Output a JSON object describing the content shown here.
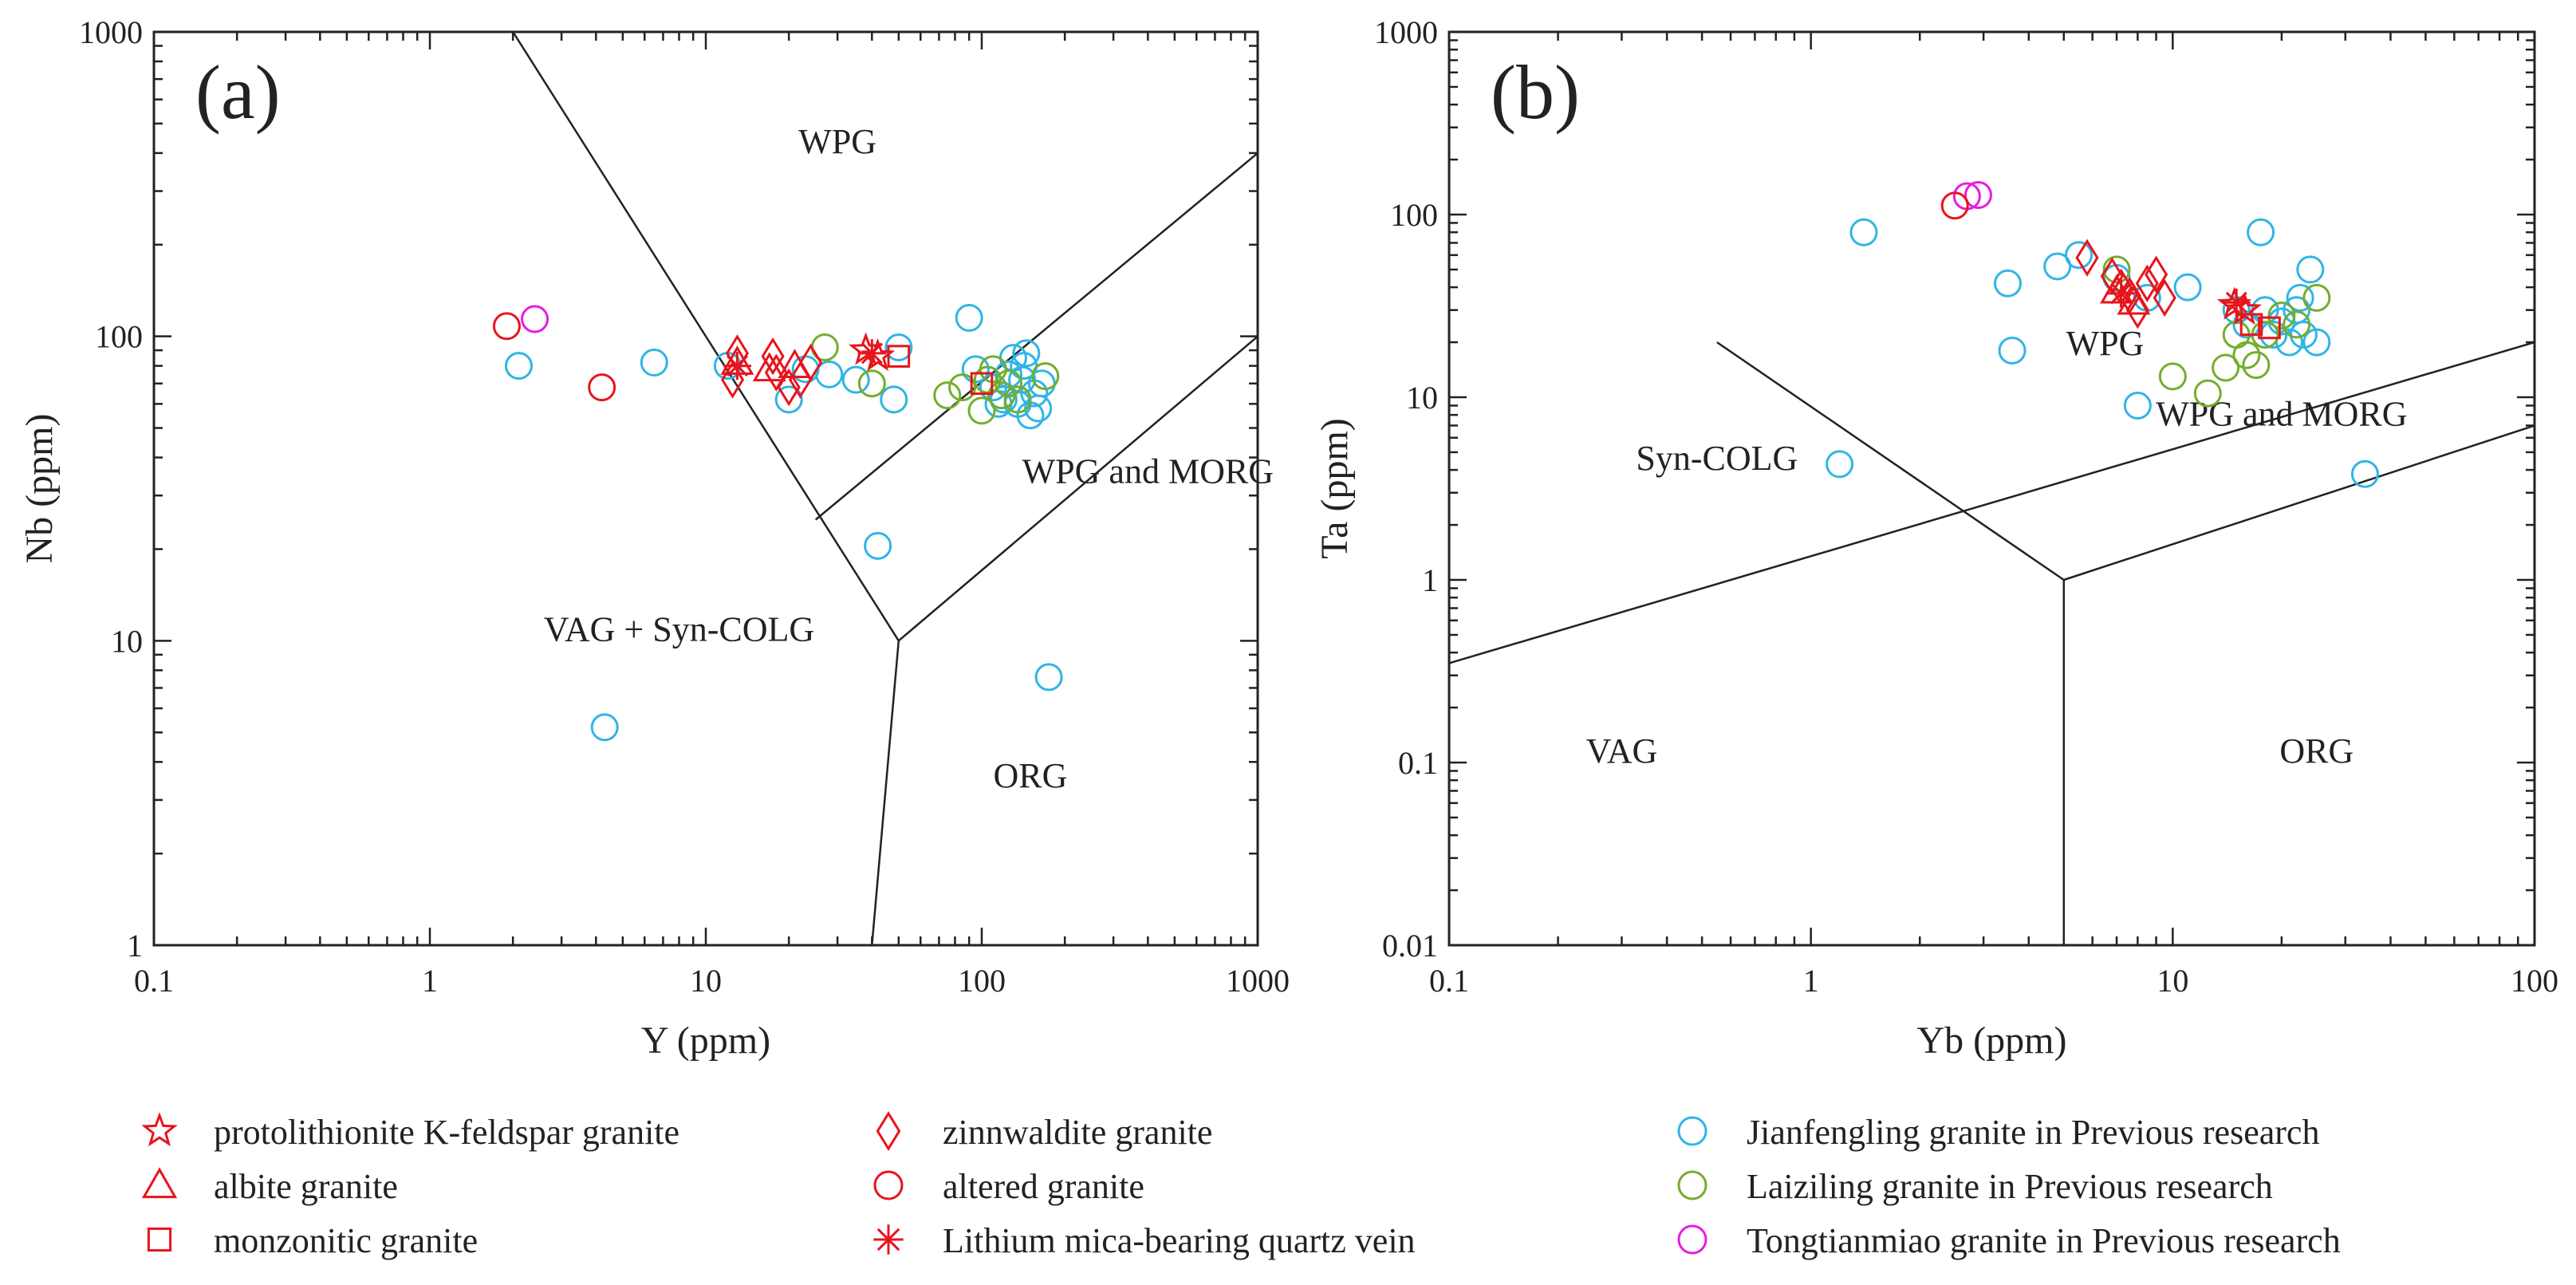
{
  "chart_data": [
    {
      "type": "scatter",
      "panel_label": "(a)",
      "xlabel": "Y (ppm)",
      "ylabel": "Nb (ppm)",
      "xscale": "log",
      "yscale": "log",
      "xlim": [
        0.1,
        1000
      ],
      "ylim": [
        1,
        1000
      ],
      "xticks": [
        0.1,
        1,
        10,
        100,
        1000
      ],
      "xtick_labels": [
        "0.1",
        "1",
        "10",
        "100",
        "1000"
      ],
      "yticks": [
        1,
        10,
        100,
        1000
      ],
      "ytick_labels": [
        "1",
        "10",
        "100",
        "1000"
      ],
      "fields": [
        {
          "label": "WPG",
          "x": 30,
          "y": 400
        },
        {
          "label": "WPG and MORG",
          "x": 400,
          "y": 33
        },
        {
          "label": "VAG + Syn-COLG",
          "x": 8,
          "y": 10
        },
        {
          "label": "ORG",
          "x": 150,
          "y": 3.3
        }
      ],
      "boundaries": [
        {
          "points": [
            [
              2,
              1000
            ],
            [
              50,
              10
            ]
          ]
        },
        {
          "points": [
            [
              50,
              10
            ],
            [
              40,
              1
            ]
          ]
        },
        {
          "points": [
            [
              25,
              25
            ],
            [
              1000,
              400
            ]
          ]
        },
        {
          "points": [
            [
              50,
              10
            ],
            [
              1000,
              100
            ]
          ]
        }
      ],
      "series": [
        {
          "name": "Jianfengling granite in Previous research",
          "points": [
            [
              2.1,
              80
            ],
            [
              6.5,
              82
            ],
            [
              4.3,
              5.2
            ],
            [
              12,
              80
            ],
            [
              20,
              62
            ],
            [
              23,
              78
            ],
            [
              28,
              75
            ],
            [
              35,
              72
            ],
            [
              42,
              20.5
            ],
            [
              48,
              62
            ],
            [
              50,
              92
            ],
            [
              90,
              115
            ],
            [
              95,
              78
            ],
            [
              110,
              68
            ],
            [
              120,
              62
            ],
            [
              130,
              85
            ],
            [
              135,
              60
            ],
            [
              140,
              72
            ],
            [
              145,
              88
            ],
            [
              150,
              55
            ],
            [
              155,
              65
            ],
            [
              160,
              58
            ],
            [
              165,
              70
            ],
            [
              175,
              7.6
            ],
            [
              125,
              75
            ],
            [
              115,
              60
            ],
            [
              142,
              80
            ]
          ]
        },
        {
          "name": "Laiziling granite in Previous research",
          "points": [
            [
              27,
              92
            ],
            [
              40,
              70
            ],
            [
              75,
              64
            ],
            [
              85,
              68
            ],
            [
              100,
              57
            ],
            [
              105,
              72
            ],
            [
              110,
              78
            ],
            [
              118,
              64
            ],
            [
              125,
              70
            ],
            [
              135,
              62
            ],
            [
              170,
              74
            ]
          ]
        },
        {
          "name": "Tongtianmiao granite in Previous research",
          "points": [
            [
              2.4,
              114
            ]
          ]
        },
        {
          "name": "altered granite",
          "points": [
            [
              1.9,
              108
            ],
            [
              4.2,
              68
            ]
          ]
        },
        {
          "name": "zinnwaldite granite",
          "points": [
            [
              12.5,
              72
            ],
            [
              13,
              88
            ],
            [
              17.5,
              86
            ],
            [
              18,
              76
            ],
            [
              20,
              68
            ],
            [
              22,
              72
            ],
            [
              24,
              82
            ]
          ]
        },
        {
          "name": "albite granite",
          "points": [
            [
              13,
              82
            ],
            [
              17,
              78
            ],
            [
              21,
              80
            ]
          ]
        },
        {
          "name": "monzonitic granite",
          "points": [
            [
              50,
              86
            ],
            [
              100,
              70
            ]
          ]
        },
        {
          "name": "protolithionite K-feldspar granite",
          "points": [
            [
              38,
              90
            ],
            [
              42,
              86
            ]
          ]
        },
        {
          "name": "Lithium mica-bearing quartz vein",
          "points": [
            [
              13,
              80
            ],
            [
              40,
              88
            ]
          ]
        }
      ]
    },
    {
      "type": "scatter",
      "panel_label": "(b)",
      "xlabel": "Yb (ppm)",
      "ylabel": "Ta (ppm)",
      "xscale": "log",
      "yscale": "log",
      "xlim": [
        0.1,
        100
      ],
      "ylim": [
        0.01,
        1000
      ],
      "xticks": [
        0.1,
        1,
        10,
        100
      ],
      "xtick_labels": [
        "0.1",
        "1",
        "10",
        "100"
      ],
      "yticks": [
        0.01,
        0.1,
        1,
        10,
        100,
        1000
      ],
      "ytick_labels": [
        "0.01",
        "0.1",
        "1",
        "10",
        "100",
        "1000"
      ],
      "fields": [
        {
          "label": "WPG",
          "x": 6.5,
          "y": 17
        },
        {
          "label": "Syn-COLG",
          "x": 0.55,
          "y": 4
        },
        {
          "label": "WPG and MORG",
          "x": 20,
          "y": 7
        },
        {
          "label": "VAG",
          "x": 0.3,
          "y": 0.1
        },
        {
          "label": "ORG",
          "x": 25,
          "y": 0.1
        }
      ],
      "boundaries": [
        {
          "points": [
            [
              0.55,
              20
            ],
            [
              5,
              1
            ]
          ]
        },
        {
          "points": [
            [
              5,
              1
            ],
            [
              5,
              0.01
            ]
          ]
        },
        {
          "points": [
            [
              0.1,
              0.35
            ],
            [
              100,
              20
            ]
          ]
        },
        {
          "points": [
            [
              5,
              1
            ],
            [
              100,
              7
            ]
          ]
        }
      ],
      "series": [
        {
          "name": "Jianfengling granite in Previous research",
          "points": [
            [
              1.2,
              4.3
            ],
            [
              1.4,
              80
            ],
            [
              3.5,
              42
            ],
            [
              3.6,
              18
            ],
            [
              4.8,
              52
            ],
            [
              5.5,
              60
            ],
            [
              7,
              45
            ],
            [
              8,
              9
            ],
            [
              8.5,
              35
            ],
            [
              11,
              40
            ],
            [
              15,
              30
            ],
            [
              16,
              25
            ],
            [
              17.5,
              80
            ],
            [
              18,
              30
            ],
            [
              19,
              22
            ],
            [
              20,
              26
            ],
            [
              21,
              20
            ],
            [
              22,
              30
            ],
            [
              23,
              22
            ],
            [
              24,
              50
            ],
            [
              25,
              20
            ],
            [
              22.5,
              35
            ],
            [
              34,
              3.8
            ]
          ]
        },
        {
          "name": "Laiziling granite in Previous research",
          "points": [
            [
              7,
              50
            ],
            [
              10,
              13
            ],
            [
              12.5,
              10.5
            ],
            [
              14,
              14.5
            ],
            [
              15,
              22
            ],
            [
              16,
              17
            ],
            [
              17,
              15
            ],
            [
              18,
              22
            ],
            [
              20,
              28
            ],
            [
              22,
              25
            ],
            [
              25,
              35
            ]
          ]
        },
        {
          "name": "Tongtianmiao granite in Previous research",
          "points": [
            [
              2.9,
              128
            ],
            [
              2.7,
              126
            ]
          ]
        },
        {
          "name": "altered granite",
          "points": [
            [
              2.5,
              112
            ]
          ]
        },
        {
          "name": "zinnwaldite granite",
          "points": [
            [
              5.8,
              58
            ],
            [
              6.8,
              46
            ],
            [
              7.2,
              40
            ],
            [
              7.6,
              36
            ],
            [
              8,
              30
            ],
            [
              8.5,
              42
            ],
            [
              9,
              47
            ],
            [
              9.5,
              35
            ]
          ]
        },
        {
          "name": "albite granite",
          "points": [
            [
              7,
              38
            ],
            [
              7.8,
              33
            ]
          ]
        },
        {
          "name": "monzonitic granite",
          "points": [
            [
              16.5,
              25
            ],
            [
              18.5,
              24
            ]
          ]
        },
        {
          "name": "protolithionite K-feldspar granite",
          "points": [
            [
              14.8,
              32
            ],
            [
              15.8,
              30
            ]
          ]
        },
        {
          "name": "Lithium mica-bearing quartz vein",
          "points": [
            [
              7.2,
              37
            ],
            [
              15,
              33
            ]
          ]
        }
      ]
    }
  ],
  "legend": [
    {
      "name": "protolithionite K-feldspar granite",
      "marker": "star",
      "color": "#e8141c"
    },
    {
      "name": "albite granite",
      "marker": "triangle",
      "color": "#e8141c"
    },
    {
      "name": "monzonitic granite",
      "marker": "square",
      "color": "#e8141c"
    },
    {
      "name": "zinnwaldite granite",
      "marker": "diamond",
      "color": "#e8141c"
    },
    {
      "name": "altered granite",
      "marker": "circle",
      "color": "#e8141c"
    },
    {
      "name": "Lithium mica-bearing quartz vein",
      "marker": "asterisk",
      "color": "#e8141c"
    },
    {
      "name": "Jianfengling granite in Previous research",
      "marker": "circle",
      "color": "#2fb5e6"
    },
    {
      "name": "Laiziling granite in Previous research",
      "marker": "circle",
      "color": "#74ad2c"
    },
    {
      "name": "Tongtianmiao granite in Previous research",
      "marker": "circle",
      "color": "#e81be0"
    }
  ]
}
